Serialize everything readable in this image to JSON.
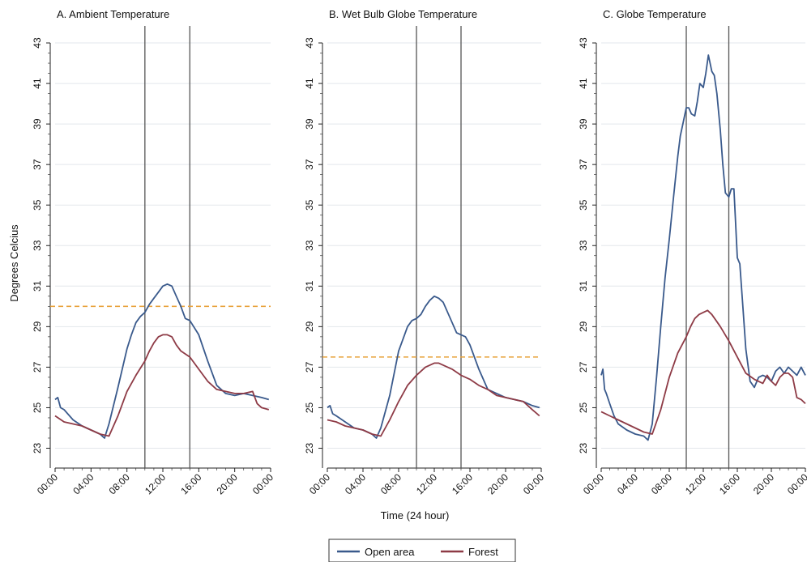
{
  "figure": {
    "ylabel": "Degrees Celcius",
    "xlabel": "Time (24 hour)"
  },
  "legend": {
    "items": [
      {
        "label": "Open area",
        "color": "#3a5a8c"
      },
      {
        "label": "Forest",
        "color": "#8e3b46"
      }
    ]
  },
  "colors": {
    "open_area": "#3a5a8c",
    "forest": "#8e3b46",
    "threshold": "#e8a33c",
    "gridline": "#e3e7ec",
    "marker_line": "#555555"
  },
  "chart_data": [
    {
      "type": "line",
      "title": "A. Ambient Temperature",
      "x_ticks": [
        "00:00",
        "04:00",
        "08:00",
        "12:00",
        "16:00",
        "20:00",
        "00:00"
      ],
      "x_tick_hours": [
        0,
        4,
        8,
        12,
        16,
        20,
        24
      ],
      "y_ticks": [
        23,
        25,
        27,
        29,
        31,
        33,
        35,
        37,
        39,
        41,
        43
      ],
      "ylim": [
        22.5,
        44
      ],
      "xlim": [
        0,
        24
      ],
      "grid": true,
      "threshold": 30,
      "vertical_lines_hours": [
        10,
        15
      ],
      "series": [
        {
          "name": "Open area",
          "x": [
            0,
            0.3,
            0.6,
            1,
            2,
            3,
            4,
            5,
            5.5,
            6,
            7,
            8,
            8.5,
            9,
            9.5,
            10,
            10.5,
            11,
            11.5,
            12,
            12.5,
            13,
            13.5,
            14,
            14.5,
            15,
            16,
            17,
            18,
            19,
            20,
            21,
            22,
            23,
            23.8
          ],
          "y": [
            25.4,
            25.5,
            25.0,
            24.9,
            24.4,
            24.1,
            23.9,
            23.7,
            23.5,
            24.2,
            26.0,
            27.9,
            28.6,
            29.2,
            29.5,
            29.7,
            30.1,
            30.4,
            30.7,
            31.0,
            31.1,
            31.0,
            30.5,
            30.0,
            29.4,
            29.3,
            28.6,
            27.3,
            26.1,
            25.7,
            25.6,
            25.7,
            25.6,
            25.5,
            25.4
          ]
        },
        {
          "name": "Forest",
          "x": [
            0,
            1,
            2,
            3,
            4,
            5,
            6,
            7,
            8,
            9,
            10,
            10.5,
            11,
            11.5,
            12,
            12.5,
            13,
            13.5,
            14,
            15,
            16,
            17,
            18,
            19,
            20,
            21,
            22,
            22.5,
            23,
            23.8
          ],
          "y": [
            24.6,
            24.3,
            24.2,
            24.1,
            23.9,
            23.7,
            23.6,
            24.6,
            25.8,
            26.6,
            27.3,
            27.8,
            28.2,
            28.5,
            28.6,
            28.6,
            28.5,
            28.1,
            27.8,
            27.5,
            26.9,
            26.3,
            25.9,
            25.8,
            25.7,
            25.7,
            25.8,
            25.2,
            25.0,
            24.9
          ]
        }
      ]
    },
    {
      "type": "line",
      "title": "B. Wet Bulb Globe Temperature",
      "x_ticks": [
        "00:00",
        "04:00",
        "08:00",
        "12:00",
        "16:00",
        "20:00",
        "00:00"
      ],
      "x_tick_hours": [
        0,
        4,
        8,
        12,
        16,
        20,
        24
      ],
      "y_ticks": [
        23,
        25,
        27,
        29,
        31,
        33,
        35,
        37,
        39,
        41,
        43
      ],
      "ylim": [
        22.5,
        44
      ],
      "xlim": [
        0,
        24
      ],
      "grid": true,
      "threshold": 27.5,
      "vertical_lines_hours": [
        10,
        15
      ],
      "series": [
        {
          "name": "Open area",
          "x": [
            0,
            0.3,
            0.6,
            1,
            2,
            3,
            4,
            5,
            5.5,
            6,
            7,
            8,
            8.5,
            9,
            9.5,
            10,
            10.5,
            11,
            11.5,
            12,
            12.5,
            13,
            13.5,
            14,
            14.5,
            15,
            15.5,
            16,
            17,
            18,
            19,
            20,
            21,
            22,
            23,
            23.8
          ],
          "y": [
            25.0,
            25.1,
            24.7,
            24.6,
            24.3,
            24.0,
            23.9,
            23.7,
            23.5,
            24.0,
            25.6,
            27.8,
            28.4,
            29.0,
            29.3,
            29.4,
            29.6,
            30.0,
            30.3,
            30.5,
            30.4,
            30.2,
            29.7,
            29.2,
            28.7,
            28.6,
            28.5,
            28.1,
            26.9,
            25.9,
            25.7,
            25.5,
            25.4,
            25.3,
            25.1,
            25.0
          ]
        },
        {
          "name": "Forest",
          "x": [
            0,
            1,
            2,
            3,
            4,
            5,
            6,
            7,
            8,
            9,
            10,
            10.5,
            11,
            11.5,
            12,
            12.5,
            13,
            14,
            15,
            16,
            17,
            18,
            19,
            20,
            21,
            22,
            23,
            23.8
          ],
          "y": [
            24.4,
            24.3,
            24.1,
            24.0,
            23.9,
            23.7,
            23.6,
            24.4,
            25.3,
            26.1,
            26.6,
            26.8,
            27.0,
            27.1,
            27.2,
            27.2,
            27.1,
            26.9,
            26.6,
            26.4,
            26.1,
            25.9,
            25.6,
            25.5,
            25.4,
            25.3,
            24.9,
            24.6
          ]
        }
      ]
    },
    {
      "type": "line",
      "title": "C. Globe Temperature",
      "x_ticks": [
        "00:00",
        "04:00",
        "08:00",
        "12:00",
        "16:00",
        "20:00",
        "00:00"
      ],
      "x_tick_hours": [
        0,
        4,
        8,
        12,
        16,
        20,
        24
      ],
      "y_ticks": [
        23,
        25,
        27,
        29,
        31,
        33,
        35,
        37,
        39,
        41,
        43
      ],
      "ylim": [
        22.5,
        44
      ],
      "xlim": [
        0,
        24
      ],
      "grid": true,
      "threshold": null,
      "vertical_lines_hours": [
        10,
        15
      ],
      "series": [
        {
          "name": "Open area",
          "x": [
            0,
            0.2,
            0.4,
            0.6,
            1,
            1.5,
            2,
            3,
            4,
            5,
            5.5,
            6,
            6.5,
            7,
            7.5,
            8,
            8.5,
            9,
            9.3,
            9.6,
            10,
            10.3,
            10.6,
            11,
            11.3,
            11.6,
            12,
            12.3,
            12.6,
            13,
            13.3,
            13.6,
            14,
            14.3,
            14.6,
            15,
            15.3,
            15.6,
            16,
            16.3,
            16.6,
            17,
            17.5,
            18,
            18.5,
            19,
            19.5,
            20,
            20.5,
            21,
            21.5,
            22,
            22.5,
            23,
            23.5,
            24
          ],
          "y": [
            26.6,
            26.9,
            25.9,
            25.7,
            25.2,
            24.6,
            24.2,
            23.9,
            23.7,
            23.6,
            23.4,
            24.2,
            26.5,
            29.0,
            31.4,
            33.3,
            35.4,
            37.4,
            38.4,
            39.0,
            39.8,
            39.8,
            39.5,
            39.4,
            40.1,
            41.0,
            40.8,
            41.5,
            42.4,
            41.6,
            41.4,
            40.5,
            38.7,
            37.0,
            35.6,
            35.4,
            35.8,
            35.8,
            32.4,
            32.1,
            30.3,
            27.9,
            26.3,
            26.0,
            26.5,
            26.6,
            26.5,
            26.3,
            26.8,
            27.0,
            26.7,
            27.0,
            26.8,
            26.6,
            27.0,
            26.6
          ]
        },
        {
          "name": "Forest",
          "x": [
            0,
            1,
            2,
            3,
            4,
            5,
            6,
            7,
            8,
            9,
            10,
            10.5,
            11,
            11.5,
            12,
            12.5,
            13,
            13.5,
            14,
            15,
            16,
            17,
            18,
            18.5,
            19,
            19.5,
            20,
            20.5,
            21,
            21.5,
            22,
            22.5,
            23,
            23.5,
            24
          ],
          "y": [
            24.8,
            24.6,
            24.4,
            24.2,
            24.0,
            23.8,
            23.7,
            24.9,
            26.5,
            27.7,
            28.5,
            29.0,
            29.4,
            29.6,
            29.7,
            29.8,
            29.6,
            29.3,
            29.0,
            28.3,
            27.5,
            26.7,
            26.4,
            26.3,
            26.2,
            26.6,
            26.3,
            26.1,
            26.5,
            26.7,
            26.7,
            26.5,
            25.5,
            25.4,
            25.2
          ]
        }
      ]
    }
  ]
}
